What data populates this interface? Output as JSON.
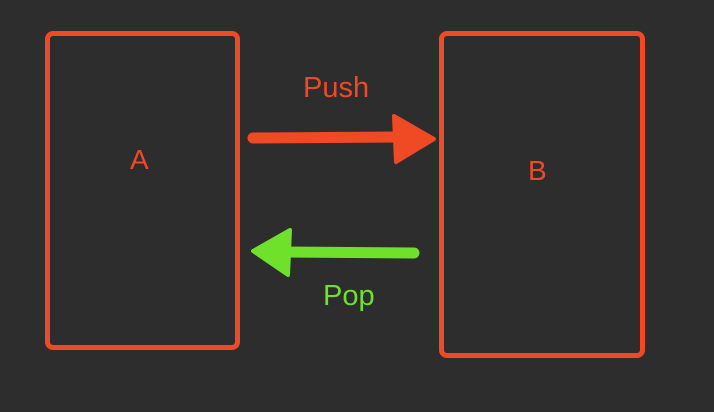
{
  "diagram": {
    "node_a": {
      "label": "A"
    },
    "node_b": {
      "label": "B"
    },
    "push_edge": {
      "label": "Push",
      "from": "A",
      "to": "B"
    },
    "pop_edge": {
      "label": "Pop",
      "from": "B",
      "to": "A"
    }
  },
  "colors": {
    "background": "#2d2d2d",
    "push_accent": "#f04a24",
    "pop_accent": "#6fe12b"
  }
}
